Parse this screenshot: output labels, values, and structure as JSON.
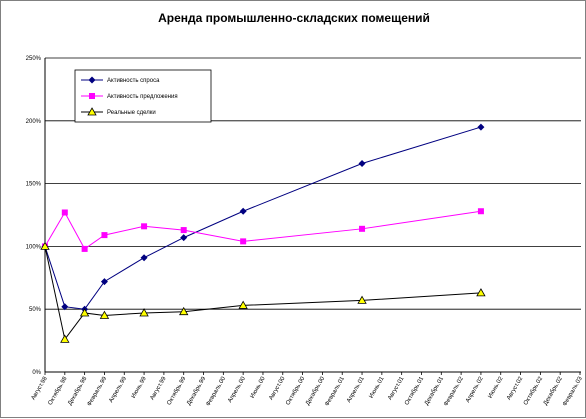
{
  "chart_data": {
    "type": "line",
    "title": "Аренда промышленно-складских помещений",
    "xlabel": "",
    "ylabel": "",
    "ylim": [
      0,
      250
    ],
    "y_ticks": [
      "0%",
      "50%",
      "100%",
      "150%",
      "200%",
      "250%"
    ],
    "grid": true,
    "legend_position": "top-left",
    "categories": [
      "Август.98",
      "Октябрь.98",
      "Декабрь.98",
      "Февраль.99",
      "Апрель.99",
      "Июнь.99",
      "Август.99",
      "Октябрь.99",
      "Декабрь.99",
      "Февраль.00",
      "Апрель.00",
      "Июнь.00",
      "Август.00",
      "Октябрь.00",
      "Декабрь.00",
      "Февраль.01",
      "Апрель.01",
      "Июнь.01",
      "Август.01",
      "Октябрь.01",
      "Декабрь.01",
      "Февраль.02",
      "Апрель.02",
      "Июнь.02",
      "Август.02",
      "Октябрь.02",
      "Декабрь.02",
      "Февраль.03"
    ],
    "series": [
      {
        "name": "Активность спроса",
        "color": "#000080",
        "marker": "diamond",
        "points": [
          [
            0,
            100
          ],
          [
            1,
            52
          ],
          [
            2,
            50
          ],
          [
            3,
            72
          ],
          [
            5,
            91
          ],
          [
            7,
            107
          ],
          [
            10,
            128
          ],
          [
            16,
            166
          ],
          [
            22,
            195
          ]
        ]
      },
      {
        "name": "Активность предложения",
        "color": "#ff00ff",
        "marker": "square",
        "points": [
          [
            0,
            100
          ],
          [
            1,
            127
          ],
          [
            2,
            98
          ],
          [
            3,
            109
          ],
          [
            5,
            116
          ],
          [
            7,
            113
          ],
          [
            10,
            104
          ],
          [
            16,
            114
          ],
          [
            22,
            128
          ]
        ]
      },
      {
        "name": "Реальные сделки",
        "color": "#000000",
        "marker": "triangle",
        "points": [
          [
            0,
            100
          ],
          [
            1,
            26
          ],
          [
            2,
            47
          ],
          [
            3,
            45
          ],
          [
            5,
            47
          ],
          [
            7,
            48
          ],
          [
            10,
            53
          ],
          [
            16,
            57
          ],
          [
            22,
            63
          ]
        ]
      }
    ]
  }
}
